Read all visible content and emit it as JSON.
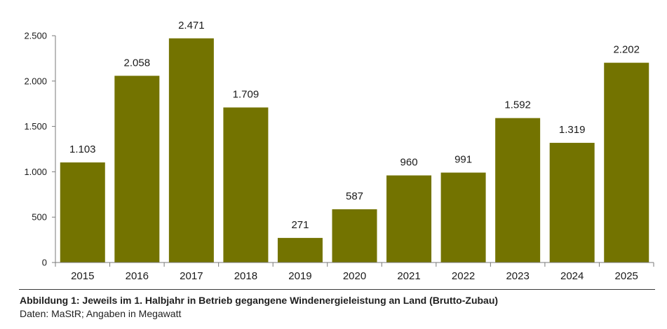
{
  "chart_data": {
    "type": "bar",
    "categories": [
      "2015",
      "2016",
      "2017",
      "2018",
      "2019",
      "2020",
      "2021",
      "2022",
      "2023",
      "2024",
      "2025"
    ],
    "values": [
      1103,
      2058,
      2471,
      1709,
      271,
      587,
      960,
      991,
      1592,
      1319,
      2202
    ],
    "value_labels": [
      "1.103",
      "2.058",
      "2.471",
      "1.709",
      "271",
      "587",
      "960",
      "991",
      "1.592",
      "1.319",
      "2.202"
    ],
    "ylim": [
      0,
      2500
    ],
    "yticks": [
      0,
      500,
      1000,
      1500,
      2000,
      2500
    ],
    "ytick_labels": [
      "0",
      "500",
      "1.000",
      "1.500",
      "2.000",
      "2.500"
    ],
    "grid": false,
    "legend": "none",
    "bar_color": "#737300",
    "title": "",
    "xlabel": "",
    "ylabel": ""
  },
  "caption": "Abbildung 1: Jeweils im 1. Halbjahr in Betrieb gegangene Windenergieleistung an Land (Brutto-Zubau)",
  "source": "Daten: MaStR; Angaben in Megawatt"
}
